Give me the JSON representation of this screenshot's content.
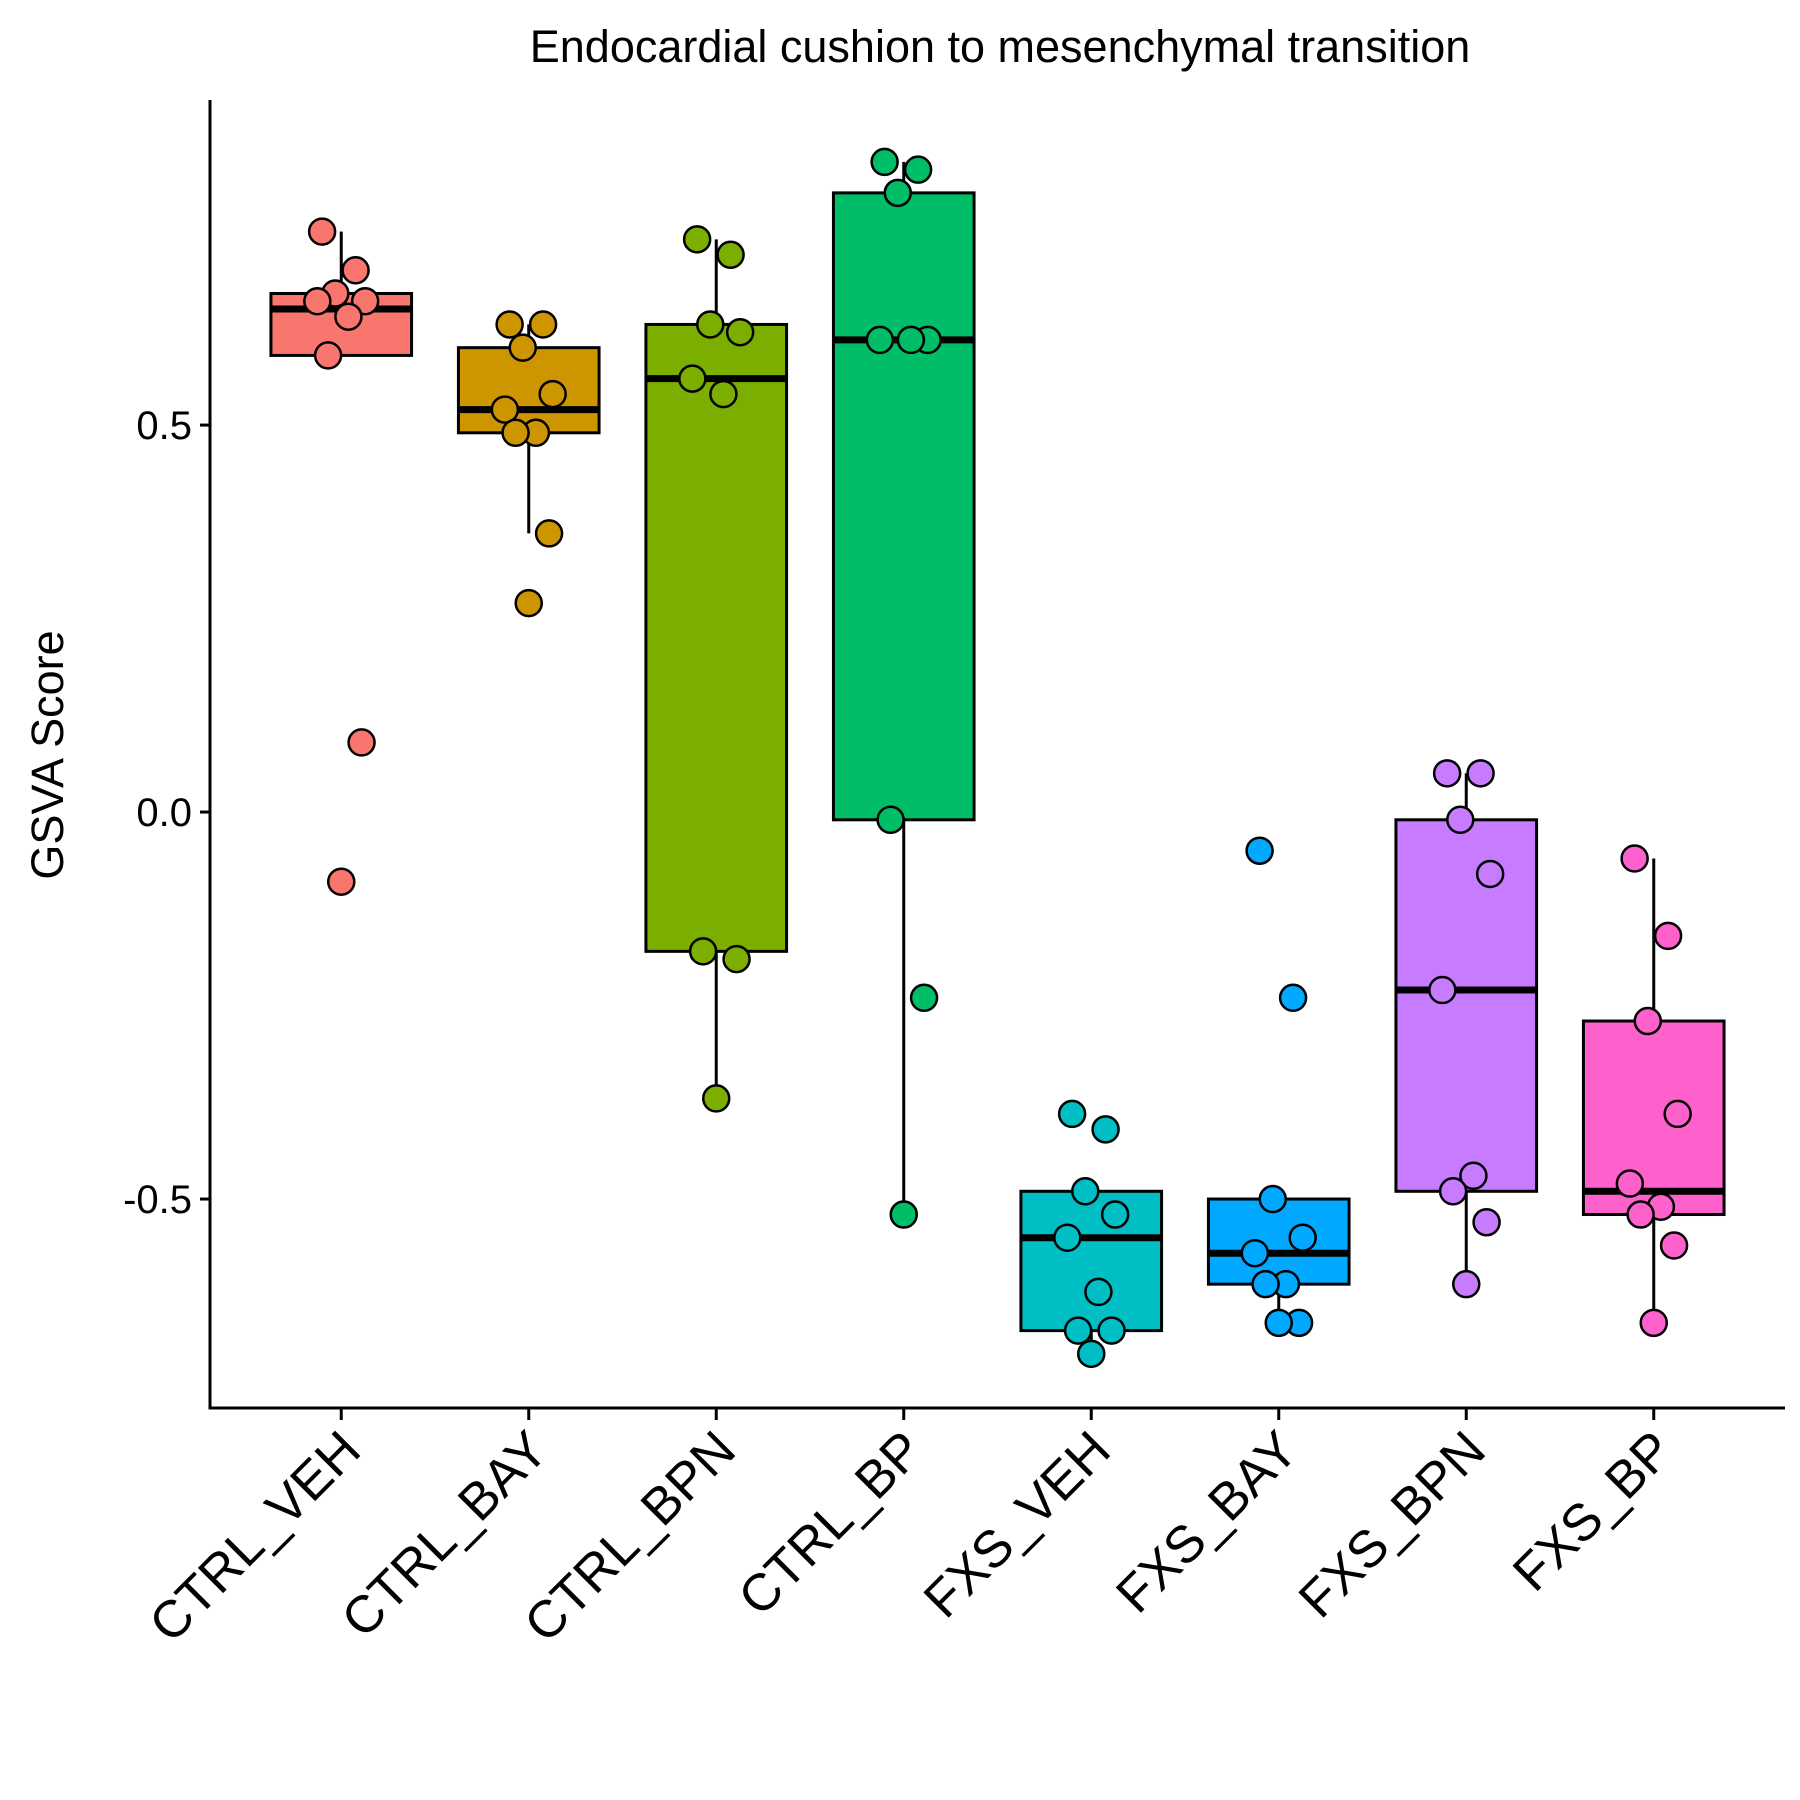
{
  "chart_data": {
    "type": "boxplot",
    "title": "Endocardial cushion to mesenchymal transition",
    "xlabel": "",
    "ylabel": "GSVA Score",
    "ylim": [
      -0.77,
      0.92
    ],
    "yticks": [
      0.5,
      0.0,
      -0.5
    ],
    "ytick_labels": [
      "0.5",
      "0.0",
      "-0.5"
    ],
    "grid": false,
    "legend": "none",
    "categories": [
      "CTRL_VEH",
      "CTRL_BAY",
      "CTRL_BPN",
      "CTRL_BP",
      "FXS_VEH",
      "FXS_BAY",
      "FXS_BPN",
      "FXS_BP"
    ],
    "groups": [
      {
        "name": "CTRL_VEH",
        "color": "#F8766D",
        "whisker_low": 0.59,
        "q1": 0.59,
        "median": 0.65,
        "q3": 0.67,
        "whisker_high": 0.75,
        "points": [
          0.75,
          0.7,
          0.67,
          0.66,
          0.66,
          0.64,
          0.59,
          0.09,
          -0.09
        ]
      },
      {
        "name": "CTRL_BAY",
        "color": "#CD9600",
        "whisker_low": 0.36,
        "q1": 0.49,
        "median": 0.52,
        "q3": 0.6,
        "whisker_high": 0.63,
        "points": [
          0.63,
          0.63,
          0.6,
          0.54,
          0.52,
          0.49,
          0.49,
          0.36,
          0.27
        ]
      },
      {
        "name": "CTRL_BPN",
        "color": "#7CAE00",
        "whisker_low": -0.37,
        "q1": -0.18,
        "median": 0.56,
        "q3": 0.63,
        "whisker_high": 0.74,
        "points": [
          0.74,
          0.72,
          0.63,
          0.62,
          0.56,
          0.54,
          -0.18,
          -0.19,
          -0.37
        ]
      },
      {
        "name": "CTRL_BP",
        "color": "#00BE67",
        "whisker_low": -0.52,
        "q1": -0.01,
        "median": 0.61,
        "q3": 0.8,
        "whisker_high": 0.84,
        "points": [
          0.84,
          0.83,
          0.8,
          0.61,
          0.61,
          0.61,
          -0.01,
          -0.24,
          -0.52
        ]
      },
      {
        "name": "FXS_VEH",
        "color": "#00BFC4",
        "whisker_low": -0.7,
        "q1": -0.67,
        "median": -0.55,
        "q3": -0.49,
        "whisker_high": -0.49,
        "points": [
          -0.39,
          -0.41,
          -0.49,
          -0.52,
          -0.55,
          -0.62,
          -0.67,
          -0.67,
          -0.7
        ]
      },
      {
        "name": "FXS_BAY",
        "color": "#00A9FF",
        "whisker_low": -0.66,
        "q1": -0.61,
        "median": -0.57,
        "q3": -0.5,
        "whisker_high": -0.5,
        "points": [
          -0.05,
          -0.24,
          -0.5,
          -0.55,
          -0.57,
          -0.61,
          -0.61,
          -0.66,
          -0.66
        ]
      },
      {
        "name": "FXS_BPN",
        "color": "#C77CFF",
        "whisker_low": -0.61,
        "q1": -0.49,
        "median": -0.23,
        "q3": -0.01,
        "whisker_high": 0.05,
        "points": [
          0.05,
          0.05,
          -0.01,
          -0.08,
          -0.23,
          -0.47,
          -0.49,
          -0.53,
          -0.61
        ]
      },
      {
        "name": "FXS_BP",
        "color": "#FF61CC",
        "whisker_low": -0.65,
        "q1": -0.52,
        "median": -0.49,
        "q3": -0.27,
        "whisker_high": -0.06,
        "points": [
          -0.06,
          -0.16,
          -0.27,
          -0.39,
          -0.48,
          -0.51,
          -0.52,
          -0.56,
          -0.66
        ]
      }
    ]
  }
}
